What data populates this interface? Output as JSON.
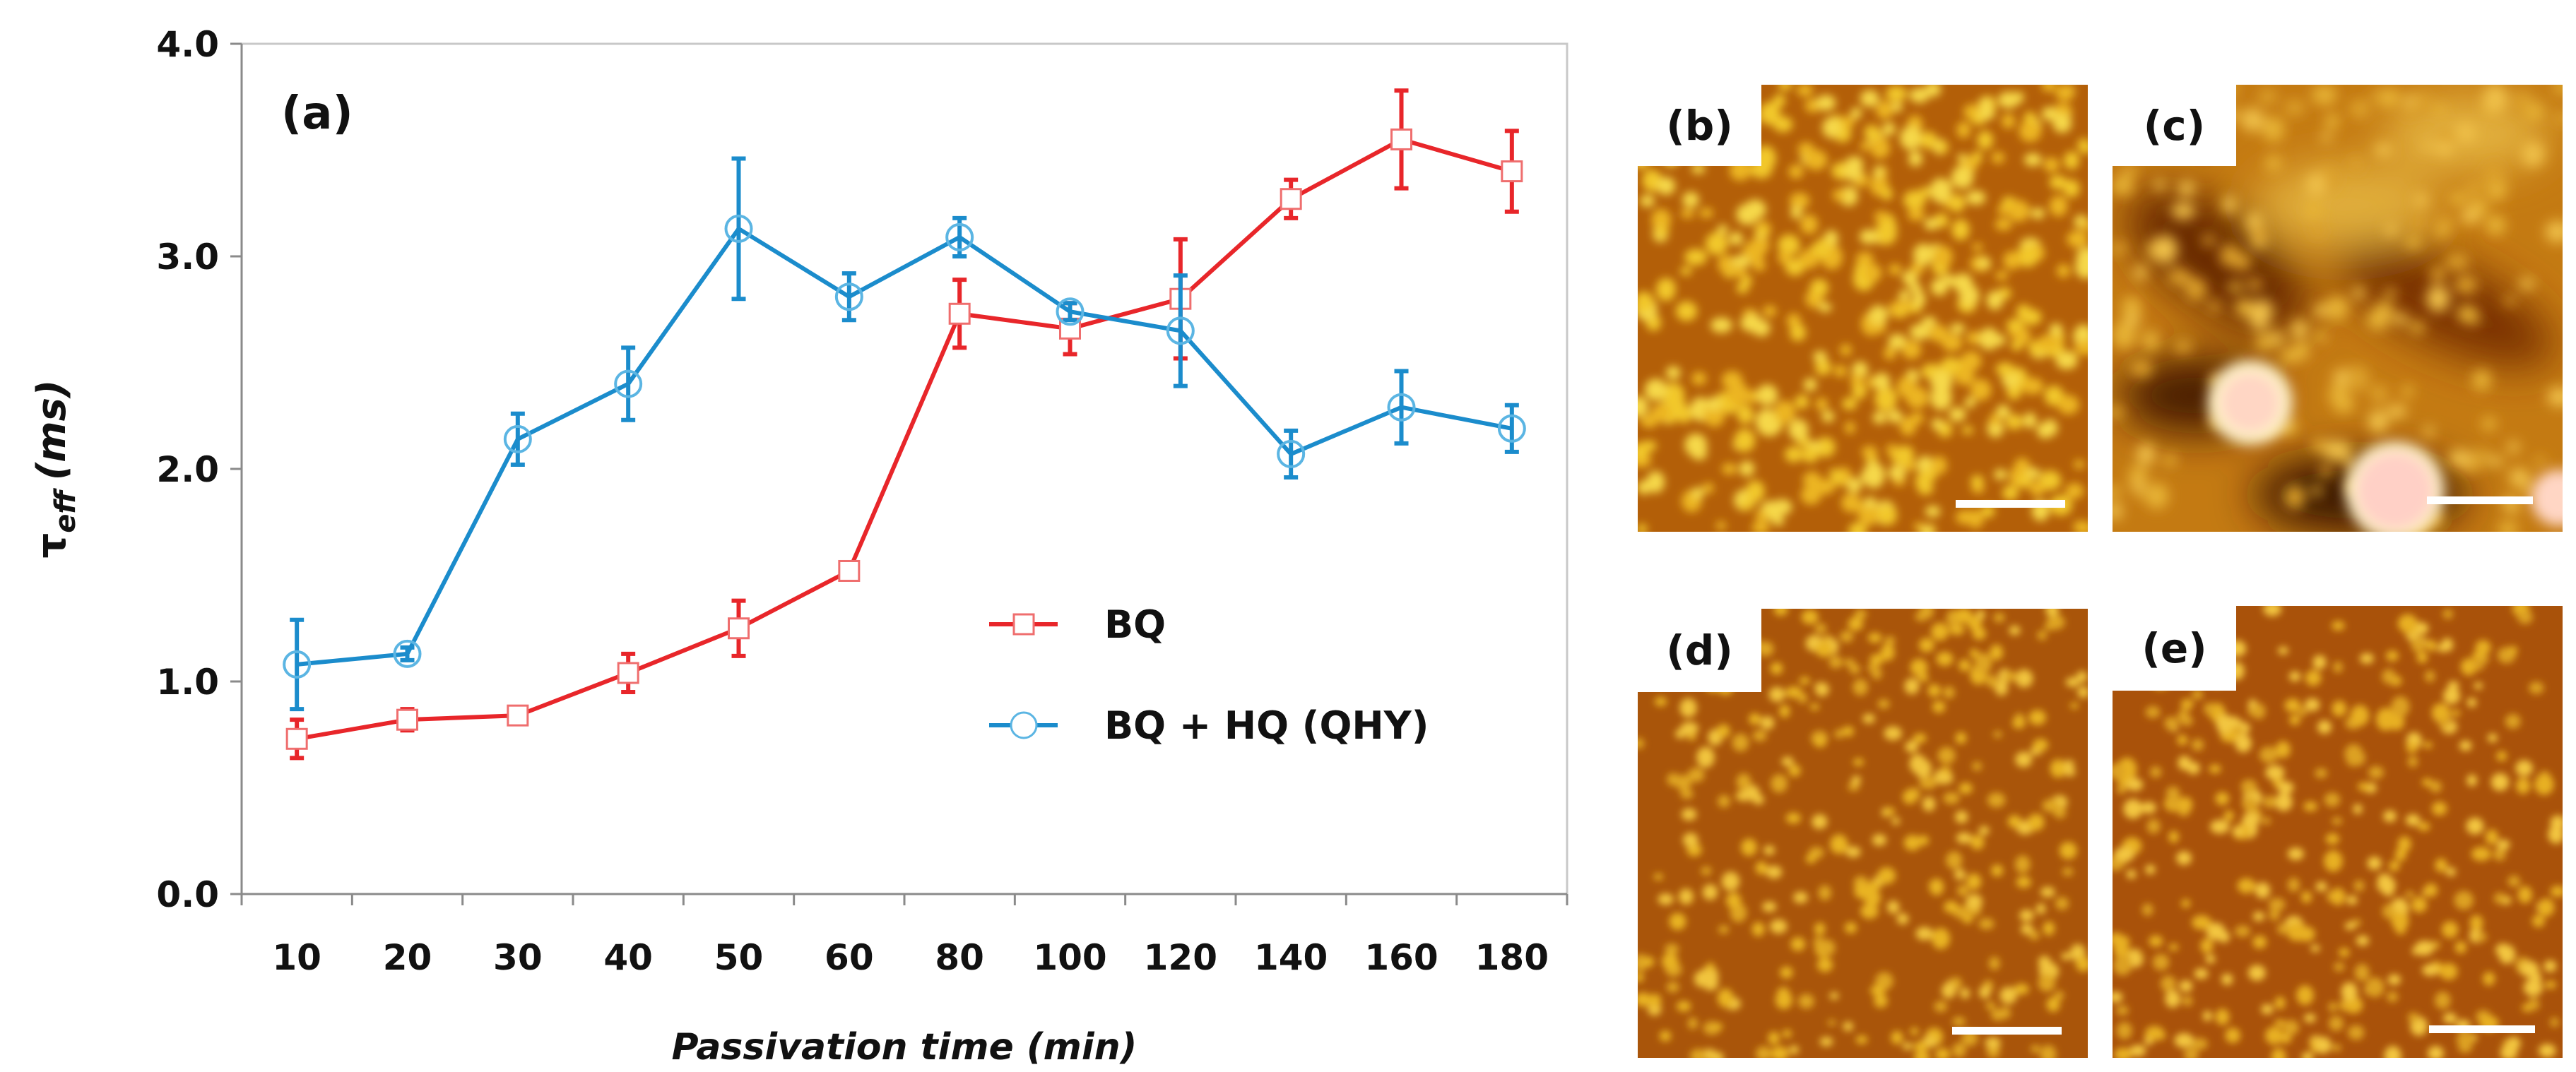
{
  "chart_data": {
    "type": "line",
    "panel_label": "(a)",
    "xlabel": "Passivation time (min)",
    "ylabel_main": "τ",
    "ylabel_sub": "eff",
    "ylabel_unit": "(ms)",
    "categories": [
      "10",
      "20",
      "30",
      "40",
      "50",
      "60",
      "80",
      "100",
      "120",
      "140",
      "160",
      "180"
    ],
    "ylim": [
      0,
      4.0
    ],
    "yticks": [
      "0.0",
      "1.0",
      "2.0",
      "3.0",
      "4.0"
    ],
    "grid": false,
    "legend_position": "center-right",
    "series": [
      {
        "name": "BQ",
        "color": "#e8262a",
        "marker": "square",
        "values": [
          0.73,
          0.82,
          0.84,
          1.04,
          1.25,
          1.52,
          2.73,
          2.66,
          2.8,
          3.27,
          3.55,
          3.4
        ],
        "errors": [
          0.09,
          0.05,
          0.04,
          0.09,
          0.13,
          0.04,
          0.16,
          0.12,
          0.28,
          0.09,
          0.23,
          0.19
        ]
      },
      {
        "name": "BQ + HQ (QHY)",
        "color": "#1b8ccc",
        "marker": "circle",
        "values": [
          1.08,
          1.13,
          2.14,
          2.4,
          3.13,
          2.81,
          3.09,
          2.74,
          2.65,
          2.07,
          2.29,
          2.19
        ],
        "errors": [
          0.21,
          0.03,
          0.12,
          0.17,
          0.33,
          0.11,
          0.09,
          0.04,
          0.26,
          0.11,
          0.17,
          0.11
        ]
      }
    ]
  },
  "afm_panels": [
    {
      "label": "(b)"
    },
    {
      "label": "(c)"
    },
    {
      "label": "(d)"
    },
    {
      "label": "(e)"
    }
  ]
}
